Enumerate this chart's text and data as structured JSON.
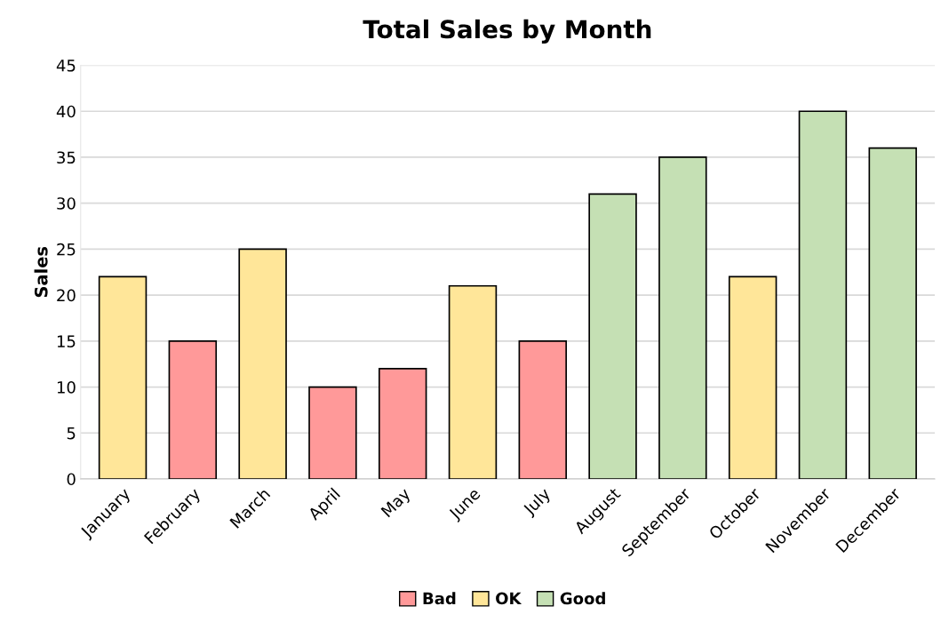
{
  "chart_data": {
    "type": "bar",
    "title": "Total Sales by Month",
    "ylabel": "Sales",
    "categories": [
      "January",
      "February",
      "March",
      "April",
      "May",
      "June",
      "July",
      "August",
      "September",
      "October",
      "November",
      "December"
    ],
    "series": [
      {
        "name": "Bad",
        "color": "#ff9999",
        "values": [
          null,
          15,
          null,
          10,
          12,
          null,
          15,
          null,
          null,
          null,
          null,
          null
        ]
      },
      {
        "name": "OK",
        "color": "#ffe699",
        "values": [
          22,
          null,
          25,
          null,
          null,
          21,
          null,
          null,
          null,
          22,
          null,
          null
        ]
      },
      {
        "name": "Good",
        "color": "#c5e0b4",
        "values": [
          null,
          null,
          null,
          null,
          null,
          null,
          null,
          31,
          35,
          null,
          40,
          36
        ]
      }
    ],
    "ylim": [
      0,
      45
    ],
    "yticks": [
      0,
      5,
      10,
      15,
      20,
      25,
      30,
      35,
      40,
      45
    ],
    "grid": "y",
    "legend": "bottom"
  }
}
